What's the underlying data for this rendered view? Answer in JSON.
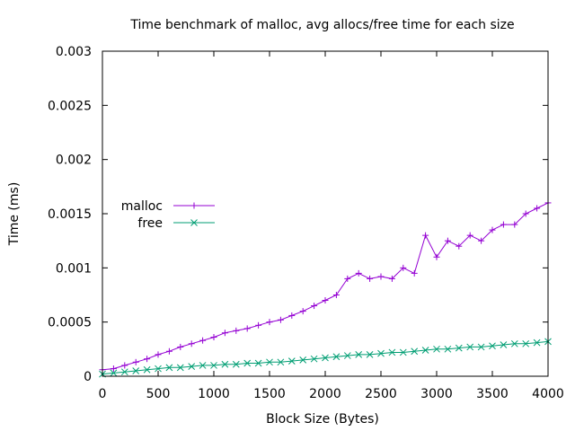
{
  "chart_data": {
    "type": "line",
    "title": "Time benchmark of malloc, avg allocs/free time for each size",
    "xlabel": "Block Size (Bytes)",
    "ylabel": "Time (ms)",
    "xlim": [
      0,
      4000
    ],
    "ylim": [
      0,
      0.003
    ],
    "xticks": [
      0,
      500,
      1000,
      1500,
      2000,
      2500,
      3000,
      3500,
      4000
    ],
    "yticks": [
      0,
      0.0005,
      0.001,
      0.0015,
      0.002,
      0.0025,
      0.003
    ],
    "xtick_labels": [
      "0",
      "500",
      "1000",
      "1500",
      "2000",
      "2500",
      "3000",
      "3500",
      "4000"
    ],
    "ytick_labels": [
      "0",
      "0.0005",
      "0.001",
      "0.0015",
      "0.002",
      "0.0025",
      "0.003"
    ],
    "grid": false,
    "legend_position": "left",
    "series": [
      {
        "name": "malloc",
        "color": "#9400d3",
        "marker": "+",
        "x": [
          0,
          100,
          200,
          300,
          400,
          500,
          600,
          700,
          800,
          900,
          1000,
          1100,
          1200,
          1300,
          1400,
          1500,
          1600,
          1700,
          1800,
          1900,
          2000,
          2100,
          2200,
          2300,
          2400,
          2500,
          2600,
          2700,
          2800,
          2900,
          3000,
          3100,
          3200,
          3300,
          3400,
          3500,
          3600,
          3700,
          3800,
          3900,
          4000
        ],
        "values": [
          6e-05,
          7e-05,
          0.0001,
          0.00013,
          0.00016,
          0.0002,
          0.00023,
          0.00027,
          0.0003,
          0.00033,
          0.00036,
          0.0004,
          0.00042,
          0.00044,
          0.00047,
          0.0005,
          0.00052,
          0.00056,
          0.0006,
          0.00065,
          0.0007,
          0.00075,
          0.0009,
          0.00095,
          0.0009,
          0.00092,
          0.0009,
          0.001,
          0.00095,
          0.0013,
          0.0011,
          0.00125,
          0.0012,
          0.0013,
          0.00125,
          0.00135,
          0.0014,
          0.0014,
          0.0015,
          0.00155,
          0.0016
        ]
      },
      {
        "name": "free",
        "color": "#009e73",
        "marker": "x",
        "x": [
          0,
          100,
          200,
          300,
          400,
          500,
          600,
          700,
          800,
          900,
          1000,
          1100,
          1200,
          1300,
          1400,
          1500,
          1600,
          1700,
          1800,
          1900,
          2000,
          2100,
          2200,
          2300,
          2400,
          2500,
          2600,
          2700,
          2800,
          2900,
          3000,
          3100,
          3200,
          3300,
          3400,
          3500,
          3600,
          3700,
          3800,
          3900,
          4000
        ],
        "values": [
          2e-05,
          3e-05,
          4e-05,
          5e-05,
          6e-05,
          7e-05,
          8e-05,
          8e-05,
          9e-05,
          0.0001,
          0.0001,
          0.00011,
          0.00011,
          0.00012,
          0.00012,
          0.00013,
          0.00013,
          0.00014,
          0.00015,
          0.00016,
          0.00017,
          0.00018,
          0.00019,
          0.0002,
          0.0002,
          0.00021,
          0.00022,
          0.00022,
          0.00023,
          0.00024,
          0.00025,
          0.00025,
          0.00026,
          0.00027,
          0.00027,
          0.00028,
          0.00029,
          0.0003,
          0.0003,
          0.00031,
          0.00032
        ]
      }
    ]
  }
}
